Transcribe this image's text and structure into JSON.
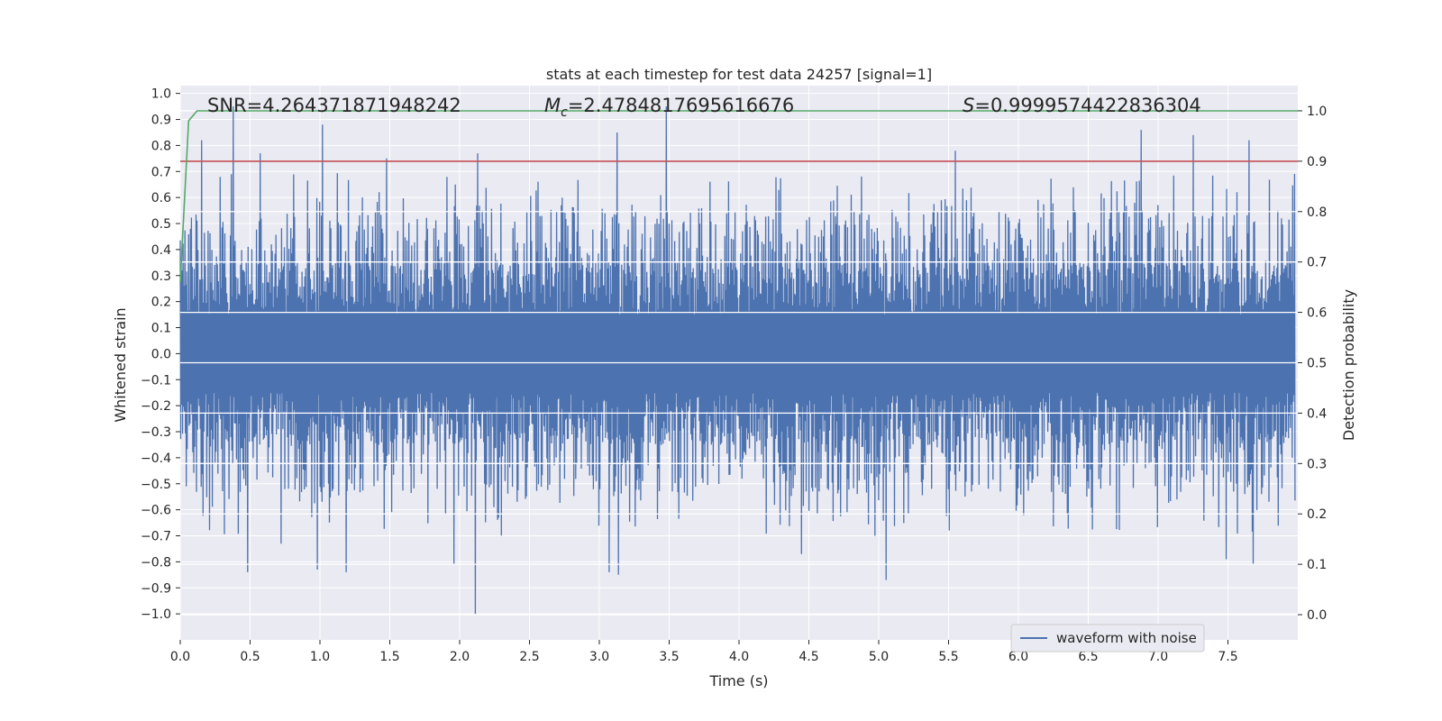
{
  "chart_data": {
    "type": "line",
    "title": "stats at each timestep for test data 24257 [signal=1]",
    "xlabel": "Time (s)",
    "ylabel_left": "Whitened strain",
    "ylabel_right": "Detection probability",
    "xlim": [
      0.0,
      8.0
    ],
    "ylim_left": [
      -1.1,
      1.03
    ],
    "ylim_right": [
      -0.05,
      1.05
    ],
    "x_ticks": [
      "0.0",
      "0.5",
      "1.0",
      "1.5",
      "2.0",
      "2.5",
      "3.0",
      "3.5",
      "4.0",
      "4.5",
      "5.0",
      "5.5",
      "6.0",
      "6.5",
      "7.0",
      "7.5"
    ],
    "y_left_ticks": [
      "1.0",
      "0.9",
      "0.8",
      "0.7",
      "0.6",
      "0.5",
      "0.4",
      "0.3",
      "0.2",
      "0.1",
      "0.0",
      "−0.1",
      "−0.2",
      "−0.3",
      "−0.4",
      "−0.5",
      "−0.6",
      "−0.7",
      "−0.8",
      "−0.9",
      "−1.0"
    ],
    "y_right_ticks": [
      "1.0",
      "0.9",
      "0.8",
      "0.7",
      "0.6",
      "0.5",
      "0.4",
      "0.3",
      "0.2",
      "0.1",
      "0.0"
    ],
    "annotations": {
      "snr": "SNR=4.264371871948242",
      "mc_symbol": "M",
      "mc_subscript": "c",
      "mc_value": "=2.4784817695616676",
      "s_symbol": "S",
      "s_value": "=0.9999574422836304"
    },
    "series": [
      {
        "name": "waveform with noise",
        "axis": "left",
        "color": "#4c72b0",
        "sample_count": 2400,
        "amplitude_envelope": [
          -1.0,
          0.95
        ],
        "prominent_peaks": [
          {
            "x": 0.15,
            "y": 0.82
          },
          {
            "x": 0.38,
            "y": 0.95
          },
          {
            "x": 0.57,
            "y": 0.77
          },
          {
            "x": 1.02,
            "y": 0.88
          },
          {
            "x": 1.48,
            "y": 0.75
          },
          {
            "x": 2.13,
            "y": 0.77
          },
          {
            "x": 3.13,
            "y": 0.85
          },
          {
            "x": 3.48,
            "y": 0.95
          },
          {
            "x": 5.55,
            "y": 0.78
          },
          {
            "x": 6.88,
            "y": 0.86
          },
          {
            "x": 7.25,
            "y": 0.84
          },
          {
            "x": 7.65,
            "y": 0.82
          }
        ],
        "prominent_troughs": [
          {
            "x": 0.48,
            "y": -0.84
          },
          {
            "x": 0.72,
            "y": -0.73
          },
          {
            "x": 0.98,
            "y": -0.83
          },
          {
            "x": 1.19,
            "y": -0.84
          },
          {
            "x": 1.96,
            "y": -0.81
          },
          {
            "x": 2.11,
            "y": -1.0
          },
          {
            "x": 3.07,
            "y": -0.84
          },
          {
            "x": 3.14,
            "y": -0.85
          },
          {
            "x": 4.45,
            "y": -0.77
          },
          {
            "x": 5.05,
            "y": -0.87
          },
          {
            "x": 7.49,
            "y": -0.79
          },
          {
            "x": 7.68,
            "y": -0.81
          }
        ]
      },
      {
        "name": "detection probability",
        "axis": "right",
        "color": "#55a868",
        "x": [
          0.0,
          0.06,
          0.12,
          8.0
        ],
        "y": [
          0.66,
          0.98,
          1.0,
          1.0
        ]
      },
      {
        "name": "threshold",
        "axis": "right",
        "color": "#c44e52",
        "x": [
          0.0,
          8.0
        ],
        "y": [
          0.9,
          0.9
        ]
      }
    ],
    "legend": {
      "position": "lower-right",
      "entries": [
        {
          "label": "waveform with noise",
          "color": "#4c72b0"
        }
      ]
    },
    "style": {
      "background": "#eaeaf2",
      "grid_color": "#ffffff",
      "text_color": "#262626"
    }
  }
}
